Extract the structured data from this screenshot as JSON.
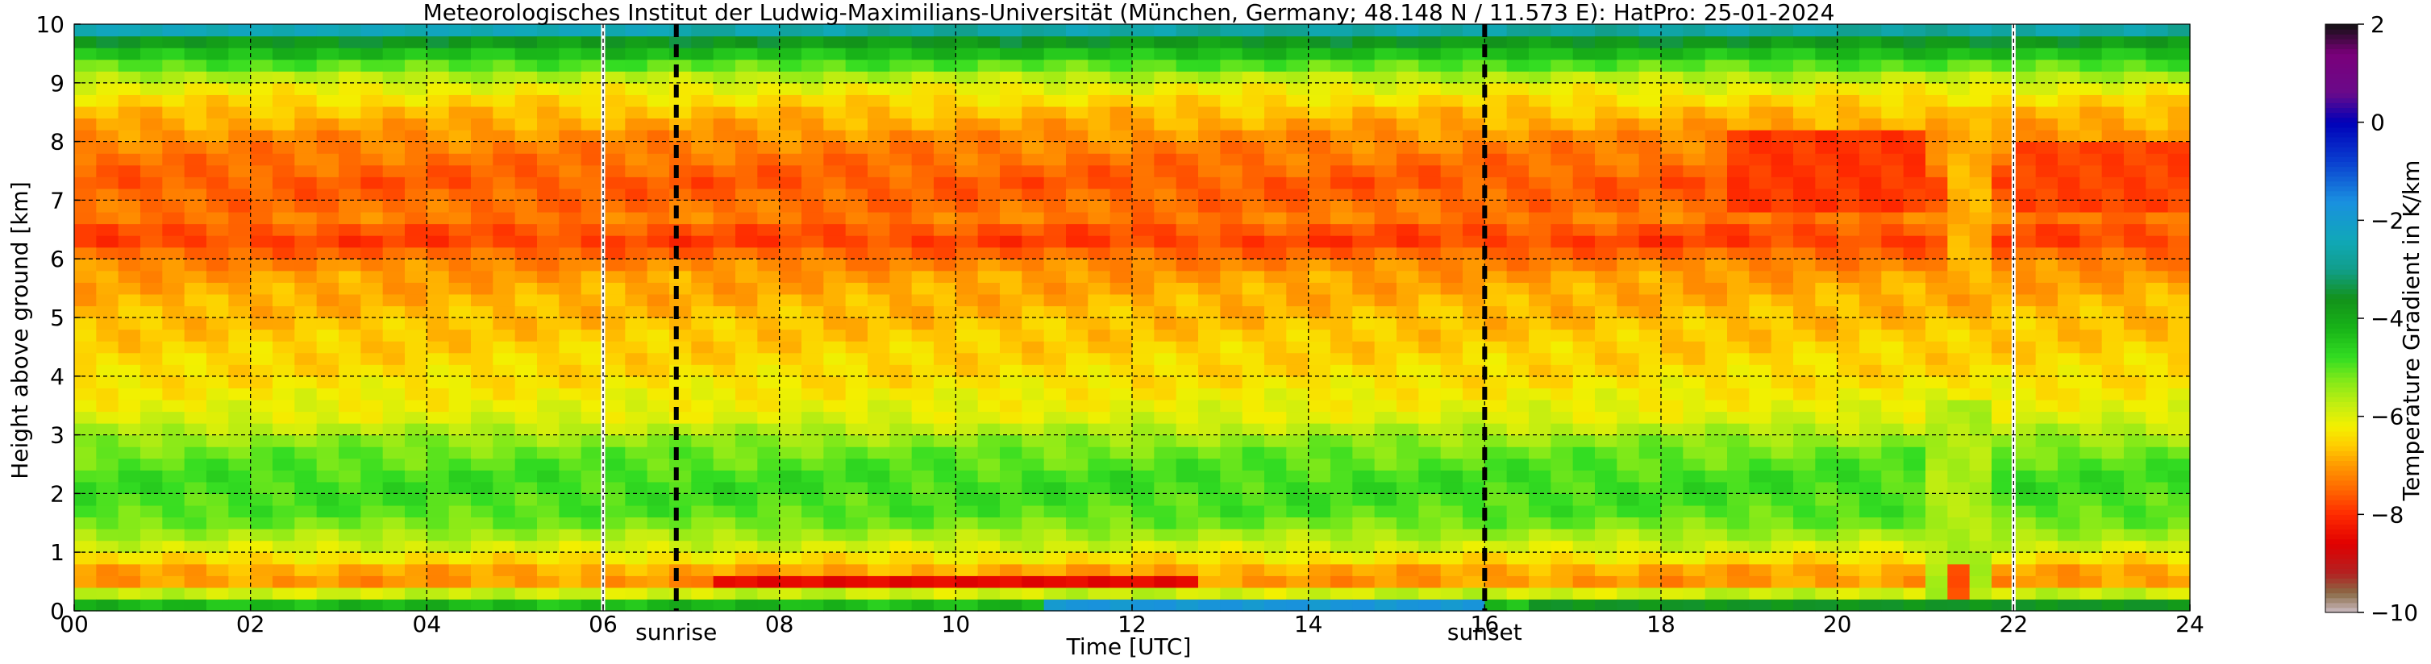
{
  "chart_data": {
    "type": "heatmap",
    "title": "Meteorologisches Institut der Ludwig-Maximilians-Universität (München, Germany; 48.148 N / 11.573 E):    HatPro: 25-01-2024",
    "xlabel": "Time [UTC]",
    "ylabel": "Height above ground [km]",
    "xlim": [
      0,
      24
    ],
    "ylim": [
      0,
      10
    ],
    "x_ticks": [
      "00",
      "02",
      "04",
      "06",
      "08",
      "10",
      "12",
      "14",
      "16",
      "18",
      "20",
      "22",
      "24"
    ],
    "y_ticks": [
      "0",
      "1",
      "2",
      "3",
      "4",
      "5",
      "6",
      "7",
      "8",
      "9",
      "10"
    ],
    "grid": true,
    "markers": [
      {
        "label": "sunrise",
        "x": 6.83
      },
      {
        "label": "sunset",
        "x": 16.0
      }
    ],
    "data_gaps": [
      6.0,
      22.0
    ],
    "colorbar": {
      "label": "Temperature Gradient in K/km",
      "range": [
        -10,
        2
      ],
      "ticks": [
        "2",
        "0",
        "−2",
        "−4",
        "−6",
        "−8",
        "−10"
      ],
      "stops": [
        {
          "value": -10,
          "color": "#cbbcc4"
        },
        {
          "value": -9.6,
          "color": "#8a6a45"
        },
        {
          "value": -9.2,
          "color": "#b22222"
        },
        {
          "value": -8.6,
          "color": "#e00000"
        },
        {
          "value": -8.0,
          "color": "#ff2a00"
        },
        {
          "value": -7.5,
          "color": "#ff6600"
        },
        {
          "value": -7.0,
          "color": "#ff9900"
        },
        {
          "value": -6.6,
          "color": "#ffcc00"
        },
        {
          "value": -6.2,
          "color": "#f3f000"
        },
        {
          "value": -5.8,
          "color": "#c8ee10"
        },
        {
          "value": -5.3,
          "color": "#88ea18"
        },
        {
          "value": -4.8,
          "color": "#33dd22"
        },
        {
          "value": -4.2,
          "color": "#18b418"
        },
        {
          "value": -3.6,
          "color": "#12921a"
        },
        {
          "value": -3.0,
          "color": "#119e8a"
        },
        {
          "value": -2.4,
          "color": "#10a8b8"
        },
        {
          "value": -1.6,
          "color": "#1a8fe0"
        },
        {
          "value": -0.8,
          "color": "#0a3fd0"
        },
        {
          "value": 0.0,
          "color": "#0000b8"
        },
        {
          "value": 0.6,
          "color": "#6a0a8a"
        },
        {
          "value": 1.4,
          "color": "#7a007a"
        },
        {
          "value": 2.0,
          "color": "#111111"
        }
      ]
    },
    "profile": [
      {
        "h": 0.0,
        "v": -3.2
      },
      {
        "h": 0.15,
        "v": -4.8
      },
      {
        "h": 0.35,
        "v": -6.2
      },
      {
        "h": 0.55,
        "v": -7.3
      },
      {
        "h": 0.8,
        "v": -6.6
      },
      {
        "h": 1.1,
        "v": -5.9
      },
      {
        "h": 1.6,
        "v": -5.0
      },
      {
        "h": 2.2,
        "v": -4.8
      },
      {
        "h": 2.8,
        "v": -5.2
      },
      {
        "h": 3.3,
        "v": -6.0
      },
      {
        "h": 4.0,
        "v": -6.4
      },
      {
        "h": 5.0,
        "v": -6.7
      },
      {
        "h": 5.8,
        "v": -7.0
      },
      {
        "h": 6.35,
        "v": -7.9
      },
      {
        "h": 6.7,
        "v": -7.3
      },
      {
        "h": 7.3,
        "v": -7.6
      },
      {
        "h": 8.0,
        "v": -7.2
      },
      {
        "h": 8.6,
        "v": -6.6
      },
      {
        "h": 9.0,
        "v": -6.0
      },
      {
        "h": 9.3,
        "v": -5.0
      },
      {
        "h": 9.6,
        "v": -4.0
      },
      {
        "h": 9.85,
        "v": -3.2
      },
      {
        "h": 10.0,
        "v": -1.6
      }
    ],
    "features": [
      {
        "t0": 7.2,
        "t1": 12.8,
        "h0": 0.38,
        "h1": 0.68,
        "v": -8.5
      },
      {
        "t0": 18.8,
        "t1": 21.0,
        "h0": 6.8,
        "h1": 8.2,
        "v": -7.9
      },
      {
        "t0": 22.0,
        "t1": 24.0,
        "h0": 6.8,
        "h1": 8.0,
        "v": -7.8
      },
      {
        "t0": 21.05,
        "t1": 21.75,
        "h0": 0.0,
        "h1": 3.6,
        "v": -5.6
      },
      {
        "t0": 21.15,
        "t1": 21.65,
        "h0": 5.5,
        "h1": 8.5,
        "v": -6.8
      },
      {
        "t0": 21.2,
        "t1": 21.6,
        "h0": 0.3,
        "h1": 0.8,
        "v": -7.6
      },
      {
        "t0": 16.5,
        "t1": 24.0,
        "h0": 0.0,
        "h1": 0.3,
        "v": -3.6
      },
      {
        "t0": 11.0,
        "t1": 16.0,
        "h0": 0.0,
        "h1": 0.1,
        "v": -1.8
      },
      {
        "t0": 0.0,
        "t1": 7.0,
        "h0": 9.85,
        "h1": 10.0,
        "v": -2.4
      }
    ]
  }
}
